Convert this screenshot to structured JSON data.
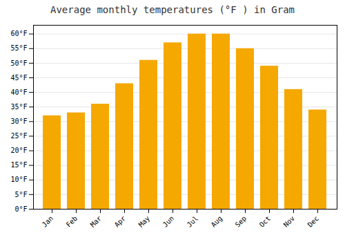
{
  "chart_data": {
    "type": "bar",
    "title": "Average monthly temperatures (°F ) in Gram",
    "categories": [
      "Jan",
      "Feb",
      "Mar",
      "Apr",
      "May",
      "Jun",
      "Jul",
      "Aug",
      "Sep",
      "Oct",
      "Nov",
      "Dec"
    ],
    "values": [
      32,
      33,
      36,
      43,
      51,
      57,
      60,
      60,
      55,
      49,
      41,
      34
    ],
    "color": "#F5A800",
    "ylim": [
      0,
      63
    ],
    "yticks": [
      {
        "value": 0,
        "label": "0°F"
      },
      {
        "value": 5,
        "label": "5°F"
      },
      {
        "value": 10,
        "label": "10°F"
      },
      {
        "value": 15,
        "label": "15°F"
      },
      {
        "value": 20,
        "label": "20°F"
      },
      {
        "value": 25,
        "label": "25°F"
      },
      {
        "value": 30,
        "label": "30°F"
      },
      {
        "value": 35,
        "label": "35°F"
      },
      {
        "value": 40,
        "label": "40°F"
      },
      {
        "value": 45,
        "label": "45°F"
      },
      {
        "value": 50,
        "label": "50°F"
      },
      {
        "value": 55,
        "label": "55°F"
      },
      {
        "value": 60,
        "label": "60°F"
      }
    ],
    "grid": true
  }
}
